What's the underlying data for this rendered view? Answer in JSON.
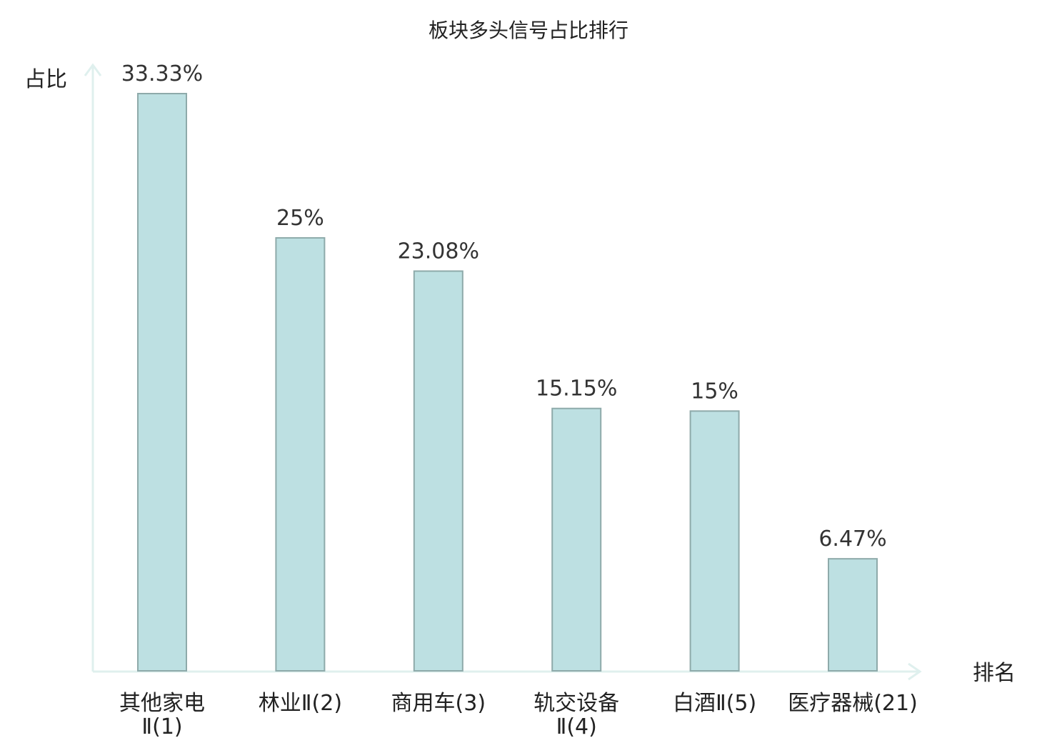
{
  "chart_data": {
    "type": "bar",
    "title": "板块多头信号占比排行",
    "xlabel": "排名",
    "ylabel": "占比",
    "categories": [
      [
        "其他家电",
        "Ⅱ(1)"
      ],
      [
        "林业Ⅱ(2)"
      ],
      [
        "商用车(3)"
      ],
      [
        "轨交设备",
        "Ⅱ(4)"
      ],
      [
        "白酒Ⅱ(5)"
      ],
      [
        "医疗器械(21)"
      ]
    ],
    "values": [
      33.33,
      25,
      23.08,
      15.15,
      15,
      6.47
    ],
    "value_labels": [
      "33.33%",
      "25%",
      "23.08%",
      "15.15%",
      "15%",
      "6.47%"
    ],
    "highlight_index": 5,
    "ylim": [
      0,
      33.33
    ],
    "grid": false,
    "colors": {
      "bar_fill": "#bde0e2",
      "bar_stroke": "#8eaaaa",
      "axis": "#dff0ee",
      "highlight_label": "#e8292c",
      "label": "#222222"
    }
  }
}
